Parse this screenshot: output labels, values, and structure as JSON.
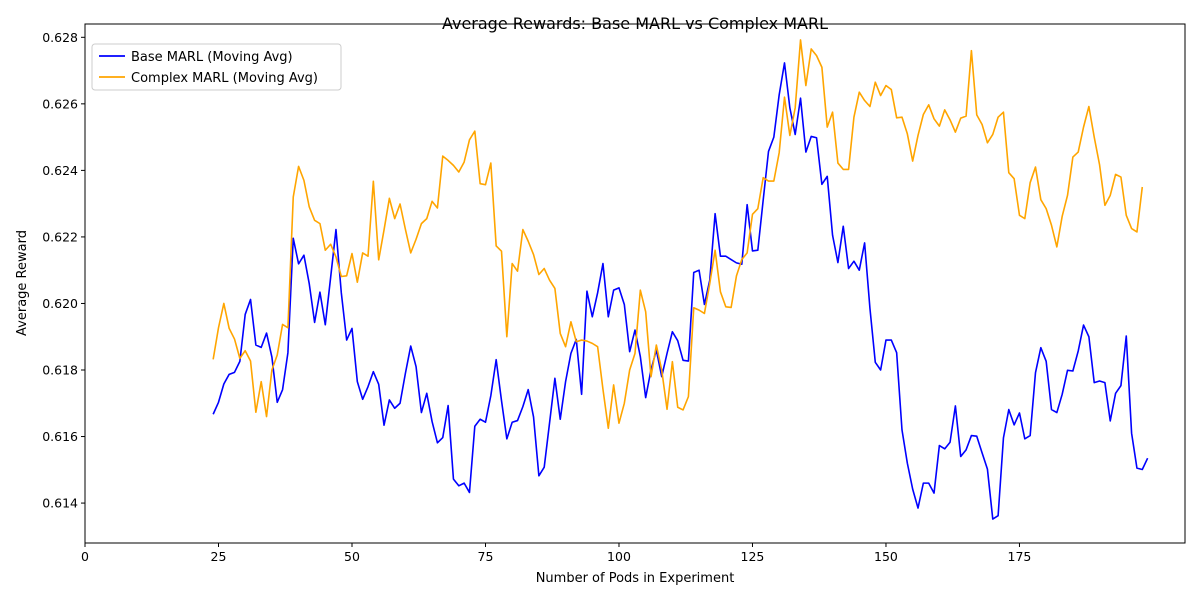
{
  "chart_data": {
    "type": "line",
    "title": "Average Rewards: Base MARL vs Complex MARL",
    "xlabel": "Number of Pods in Experiment",
    "ylabel": "Average Reward",
    "xlim": [
      0,
      206
    ],
    "ylim": [
      0.6128,
      0.6284
    ],
    "xticks": [
      0,
      25,
      50,
      75,
      100,
      125,
      150,
      175
    ],
    "xtick_labels": [
      "0",
      "25",
      "50",
      "75",
      "100",
      "125",
      "150",
      "175"
    ],
    "yticks": [
      0.614,
      0.616,
      0.618,
      0.62,
      0.622,
      0.624,
      0.626,
      0.628
    ],
    "ytick_labels": [
      "0.614",
      "0.616",
      "0.618",
      "0.620",
      "0.622",
      "0.624",
      "0.626",
      "0.628"
    ],
    "grid": false,
    "legend_position": "top-left",
    "x_start": 24,
    "series": [
      {
        "name": "Base MARL (Moving Avg)",
        "color": "#0000ff",
        "values": [
          0.61667,
          0.61703,
          0.61758,
          0.61787,
          0.61793,
          0.61826,
          0.61967,
          0.62012,
          0.61875,
          0.61868,
          0.61911,
          0.61839,
          0.61703,
          0.61741,
          0.61852,
          0.62196,
          0.62119,
          0.62145,
          0.62059,
          0.61943,
          0.62034,
          0.61936,
          0.62078,
          0.62222,
          0.62032,
          0.6189,
          0.61925,
          0.61765,
          0.61712,
          0.6175,
          0.61795,
          0.61757,
          0.61634,
          0.6171,
          0.61685,
          0.617,
          0.6179,
          0.61872,
          0.6181,
          0.61672,
          0.6173,
          0.61645,
          0.61581,
          0.61597,
          0.61693,
          0.61472,
          0.61452,
          0.6146,
          0.61432,
          0.61631,
          0.61652,
          0.61643,
          0.61723,
          0.61831,
          0.61708,
          0.61593,
          0.61643,
          0.61648,
          0.6169,
          0.61741,
          0.61659,
          0.61482,
          0.61508,
          0.61641,
          0.61775,
          0.61652,
          0.61765,
          0.6185,
          0.61892,
          0.61727,
          0.62037,
          0.6196,
          0.62032,
          0.6212,
          0.6196,
          0.6204,
          0.62047,
          0.61997,
          0.61855,
          0.6192,
          0.6184,
          0.61717,
          0.61801,
          0.6186,
          0.6178,
          0.6185,
          0.61915,
          0.61888,
          0.61829,
          0.61827,
          0.62093,
          0.621,
          0.61997,
          0.6207,
          0.6227,
          0.62142,
          0.62142,
          0.62132,
          0.62122,
          0.62118,
          0.62297,
          0.62158,
          0.6216,
          0.6231,
          0.62457,
          0.625,
          0.62627,
          0.62723,
          0.62588,
          0.62508,
          0.62617,
          0.62455,
          0.62502,
          0.62498,
          0.62358,
          0.62382,
          0.62205,
          0.62123,
          0.62232,
          0.62105,
          0.62127,
          0.621,
          0.62182,
          0.61985,
          0.61823,
          0.618,
          0.6189,
          0.6189,
          0.61852,
          0.6162,
          0.6152,
          0.61442,
          0.61385,
          0.6146,
          0.6146,
          0.6143,
          0.61573,
          0.61563,
          0.61583,
          0.61692,
          0.6154,
          0.6156,
          0.61603,
          0.61601,
          0.61551,
          0.61502,
          0.61352,
          0.61362,
          0.61596,
          0.61681,
          0.61635,
          0.61671,
          0.61593,
          0.61603,
          0.61792,
          0.61867,
          0.61826,
          0.61681,
          0.61672,
          0.61727,
          0.61799,
          0.61797,
          0.61857,
          0.61935,
          0.619,
          0.61762,
          0.61767,
          0.61762,
          0.61647,
          0.6173,
          0.61753,
          0.61902,
          0.6161,
          0.61505,
          0.61501,
          0.61535
        ]
      },
      {
        "name": "Complex MARL (Moving Avg)",
        "color": "#ffa500",
        "values": [
          0.61832,
          0.61927,
          0.62,
          0.61925,
          0.61893,
          0.61835,
          0.61858,
          0.61827,
          0.61673,
          0.61765,
          0.6166,
          0.618,
          0.61845,
          0.61937,
          0.61927,
          0.6232,
          0.62412,
          0.6237,
          0.6229,
          0.6225,
          0.6224,
          0.6216,
          0.62178,
          0.6214,
          0.62081,
          0.62083,
          0.6215,
          0.62064,
          0.62152,
          0.62142,
          0.62367,
          0.62131,
          0.62221,
          0.62316,
          0.62255,
          0.62299,
          0.62223,
          0.62152,
          0.62193,
          0.6224,
          0.62255,
          0.62307,
          0.62287,
          0.62443,
          0.6243,
          0.62415,
          0.62395,
          0.62425,
          0.62492,
          0.62518,
          0.6236,
          0.62357,
          0.62422,
          0.62173,
          0.62157,
          0.619,
          0.6212,
          0.62097,
          0.62222,
          0.62187,
          0.62147,
          0.62087,
          0.62105,
          0.6207,
          0.62045,
          0.6191,
          0.6187,
          0.61945,
          0.61885,
          0.6189,
          0.61887,
          0.6188,
          0.6187,
          0.61742,
          0.61625,
          0.61755,
          0.6164,
          0.617,
          0.618,
          0.6185,
          0.6204,
          0.61975,
          0.6178,
          0.61875,
          0.618,
          0.61682,
          0.61825,
          0.61688,
          0.6168,
          0.6172,
          0.61987,
          0.6198,
          0.6197,
          0.6206,
          0.6216,
          0.62035,
          0.6199,
          0.61988,
          0.62083,
          0.62132,
          0.62152,
          0.62268,
          0.62285,
          0.62378,
          0.62368,
          0.62368,
          0.62453,
          0.6262,
          0.62505,
          0.62588,
          0.62792,
          0.62655,
          0.62765,
          0.62745,
          0.6271,
          0.6253,
          0.62575,
          0.62422,
          0.62403,
          0.62403,
          0.6256,
          0.62635,
          0.6261,
          0.62592,
          0.62665,
          0.62625,
          0.62655,
          0.62643,
          0.62558,
          0.6256,
          0.6251,
          0.62428,
          0.62505,
          0.62568,
          0.62597,
          0.62555,
          0.62533,
          0.62582,
          0.62552,
          0.62515,
          0.62557,
          0.62563,
          0.6276,
          0.62567,
          0.62538,
          0.62483,
          0.62508,
          0.6256,
          0.62575,
          0.62393,
          0.62375,
          0.62265,
          0.62255,
          0.62363,
          0.6241,
          0.62312,
          0.62285,
          0.62235,
          0.6217,
          0.62262,
          0.62325,
          0.6244,
          0.62455,
          0.6253,
          0.62592,
          0.625,
          0.62417,
          0.62295,
          0.62325,
          0.62388,
          0.6238,
          0.62265,
          0.62225,
          0.62215,
          0.6235
        ]
      }
    ]
  }
}
